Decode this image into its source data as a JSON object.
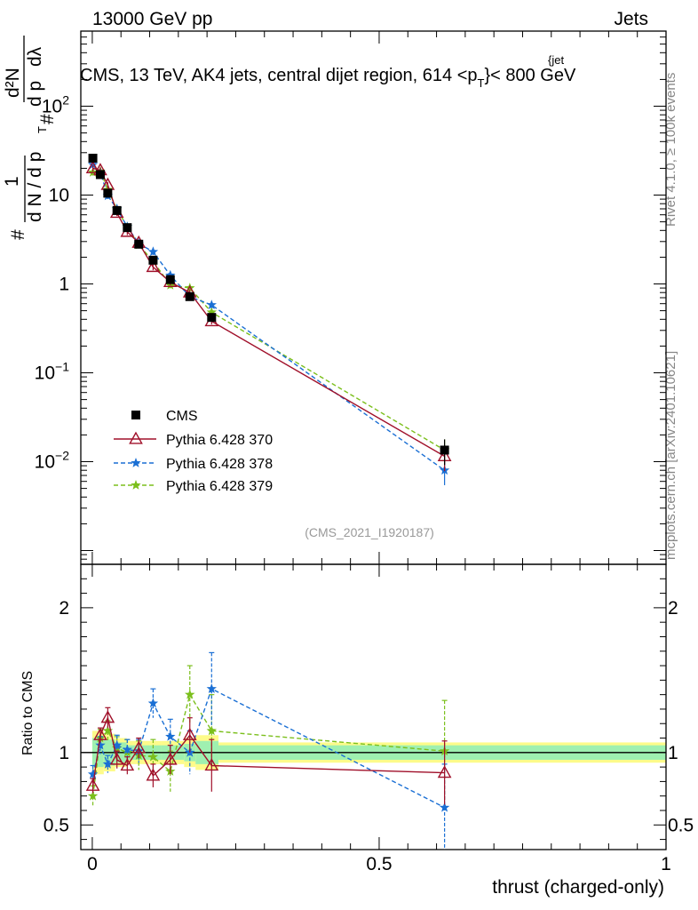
{
  "header": {
    "left": "13000 GeV pp",
    "right": "Jets",
    "side_right_top": "Rivet 4.1.0, ≥ 100k events",
    "side_right_bottom": "mcplots.cern.ch [arXiv:2401.10621]",
    "watermark": "(CMS_2021_I1920187)"
  },
  "chart_data": {
    "type": "line",
    "title": "CMS, 13 TeV, AK4 jets, central dijet region, 614 <p_T^{jet}< 800 GeV",
    "title_parts": {
      "main": "CMS, 13 TeV, AK4 jets, central dijet region, 614 <p",
      "sub": "T",
      "sup": "{jet",
      "tail": "}< 800 GeV"
    },
    "xlabel": "thrust (charged-only)",
    "ylabel_main": "1/N dN/dp_T d^2N/dp_T dλ",
    "ylabel_main_parts": {
      "hash": "#",
      "one": "1",
      "dN": "d N / d p",
      "T": "T",
      "hash2": "#",
      "d2N": "d²N",
      "dpT": "d p",
      "dlambda": "dλ"
    },
    "ylabel_ratio": "Ratio to CMS",
    "xlim": [
      -0.02,
      1.0
    ],
    "ylim_main": [
      0.0007,
      700
    ],
    "ylim_ratio": [
      0.33,
      2.3
    ],
    "x_ticks": [
      {
        "value": 0,
        "label": "0"
      },
      {
        "value": 0.5,
        "label": "0.5"
      },
      {
        "value": 1,
        "label": "1"
      }
    ],
    "y_ticks_main": [
      {
        "value": 100,
        "base": "10",
        "exp": "2"
      },
      {
        "value": 10,
        "base": "10",
        "exp": ""
      },
      {
        "value": 1,
        "base": "1",
        "exp": ""
      },
      {
        "value": 0.1,
        "base": "10",
        "exp": "−1"
      },
      {
        "value": 0.01,
        "base": "10",
        "exp": "−2"
      }
    ],
    "y_ticks_ratio": [
      {
        "value": 2,
        "label": "2"
      },
      {
        "value": 1,
        "label": "1"
      },
      {
        "value": 0.5,
        "label": "0.5"
      }
    ],
    "band_edges": [
      0,
      0.02,
      0.04,
      0.06,
      0.08,
      0.1,
      0.12,
      0.14,
      0.16,
      0.18,
      0.22,
      1.0
    ],
    "band_inner": [
      0.1,
      0.09,
      0.07,
      0.05,
      0.05,
      0.05,
      0.05,
      0.05,
      0.06,
      0.08,
      0.05
    ],
    "band_outer": [
      0.15,
      0.13,
      0.1,
      0.08,
      0.08,
      0.08,
      0.08,
      0.08,
      0.1,
      0.12,
      0.07
    ],
    "legend": [
      "CMS",
      "Pythia 6.428 370",
      "Pythia 6.428 378",
      "Pythia 6.428 379"
    ],
    "x": [
      0.001,
      0.014,
      0.027,
      0.043,
      0.061,
      0.081,
      0.106,
      0.136,
      0.17,
      0.208,
      0.614
    ],
    "series": [
      {
        "name": "CMS",
        "color": "#000000",
        "marker": "square",
        "values": [
          26,
          17,
          10.5,
          6.7,
          4.3,
          2.8,
          1.85,
          1.12,
          0.72,
          0.42,
          0.0135
        ]
      },
      {
        "name": "Pythia 6.428 370",
        "color": "#a0102a",
        "marker": "triangle",
        "style": "solid",
        "values": [
          20,
          19,
          13,
          6.3,
          3.85,
          2.9,
          1.55,
          1.05,
          0.8,
          0.38,
          0.0115
        ],
        "ratio": [
          0.77,
          1.12,
          1.24,
          0.95,
          0.91,
          1.03,
          0.84,
          0.95,
          1.12,
          0.91,
          0.86
        ],
        "ratio_err": [
          0.05,
          0.05,
          0.07,
          0.06,
          0.06,
          0.07,
          0.08,
          0.1,
          0.12,
          0.18,
          0.22
        ]
      },
      {
        "name": "Pythia 6.428 378",
        "color": "#1a6fd4",
        "marker": "star",
        "style": "dashed",
        "values": [
          22,
          18,
          9.8,
          7.0,
          4.4,
          2.85,
          2.3,
          1.25,
          0.72,
          0.58,
          0.008
        ],
        "ratio": [
          0.85,
          1.05,
          0.92,
          1.05,
          1.02,
          1.01,
          1.34,
          1.11,
          1.0,
          1.44,
          0.62
        ],
        "ratio_err": [
          0.06,
          0.06,
          0.06,
          0.07,
          0.07,
          0.08,
          0.1,
          0.12,
          0.15,
          0.25,
          0.3
        ]
      },
      {
        "name": "Pythia 6.428 379",
        "color": "#7bbf1c",
        "marker": "star",
        "style": "dashed",
        "values": [
          18,
          18.5,
          11.5,
          6.9,
          4.4,
          2.75,
          1.8,
          0.97,
          0.9,
          0.48,
          0.0135
        ],
        "ratio": [
          0.7,
          1.1,
          1.15,
          1.03,
          1.0,
          0.98,
          0.97,
          0.87,
          1.4,
          1.15,
          1.01
        ],
        "ratio_err": [
          0.07,
          0.06,
          0.07,
          0.08,
          0.09,
          0.1,
          0.12,
          0.14,
          0.2,
          0.25,
          0.35
        ]
      }
    ]
  }
}
